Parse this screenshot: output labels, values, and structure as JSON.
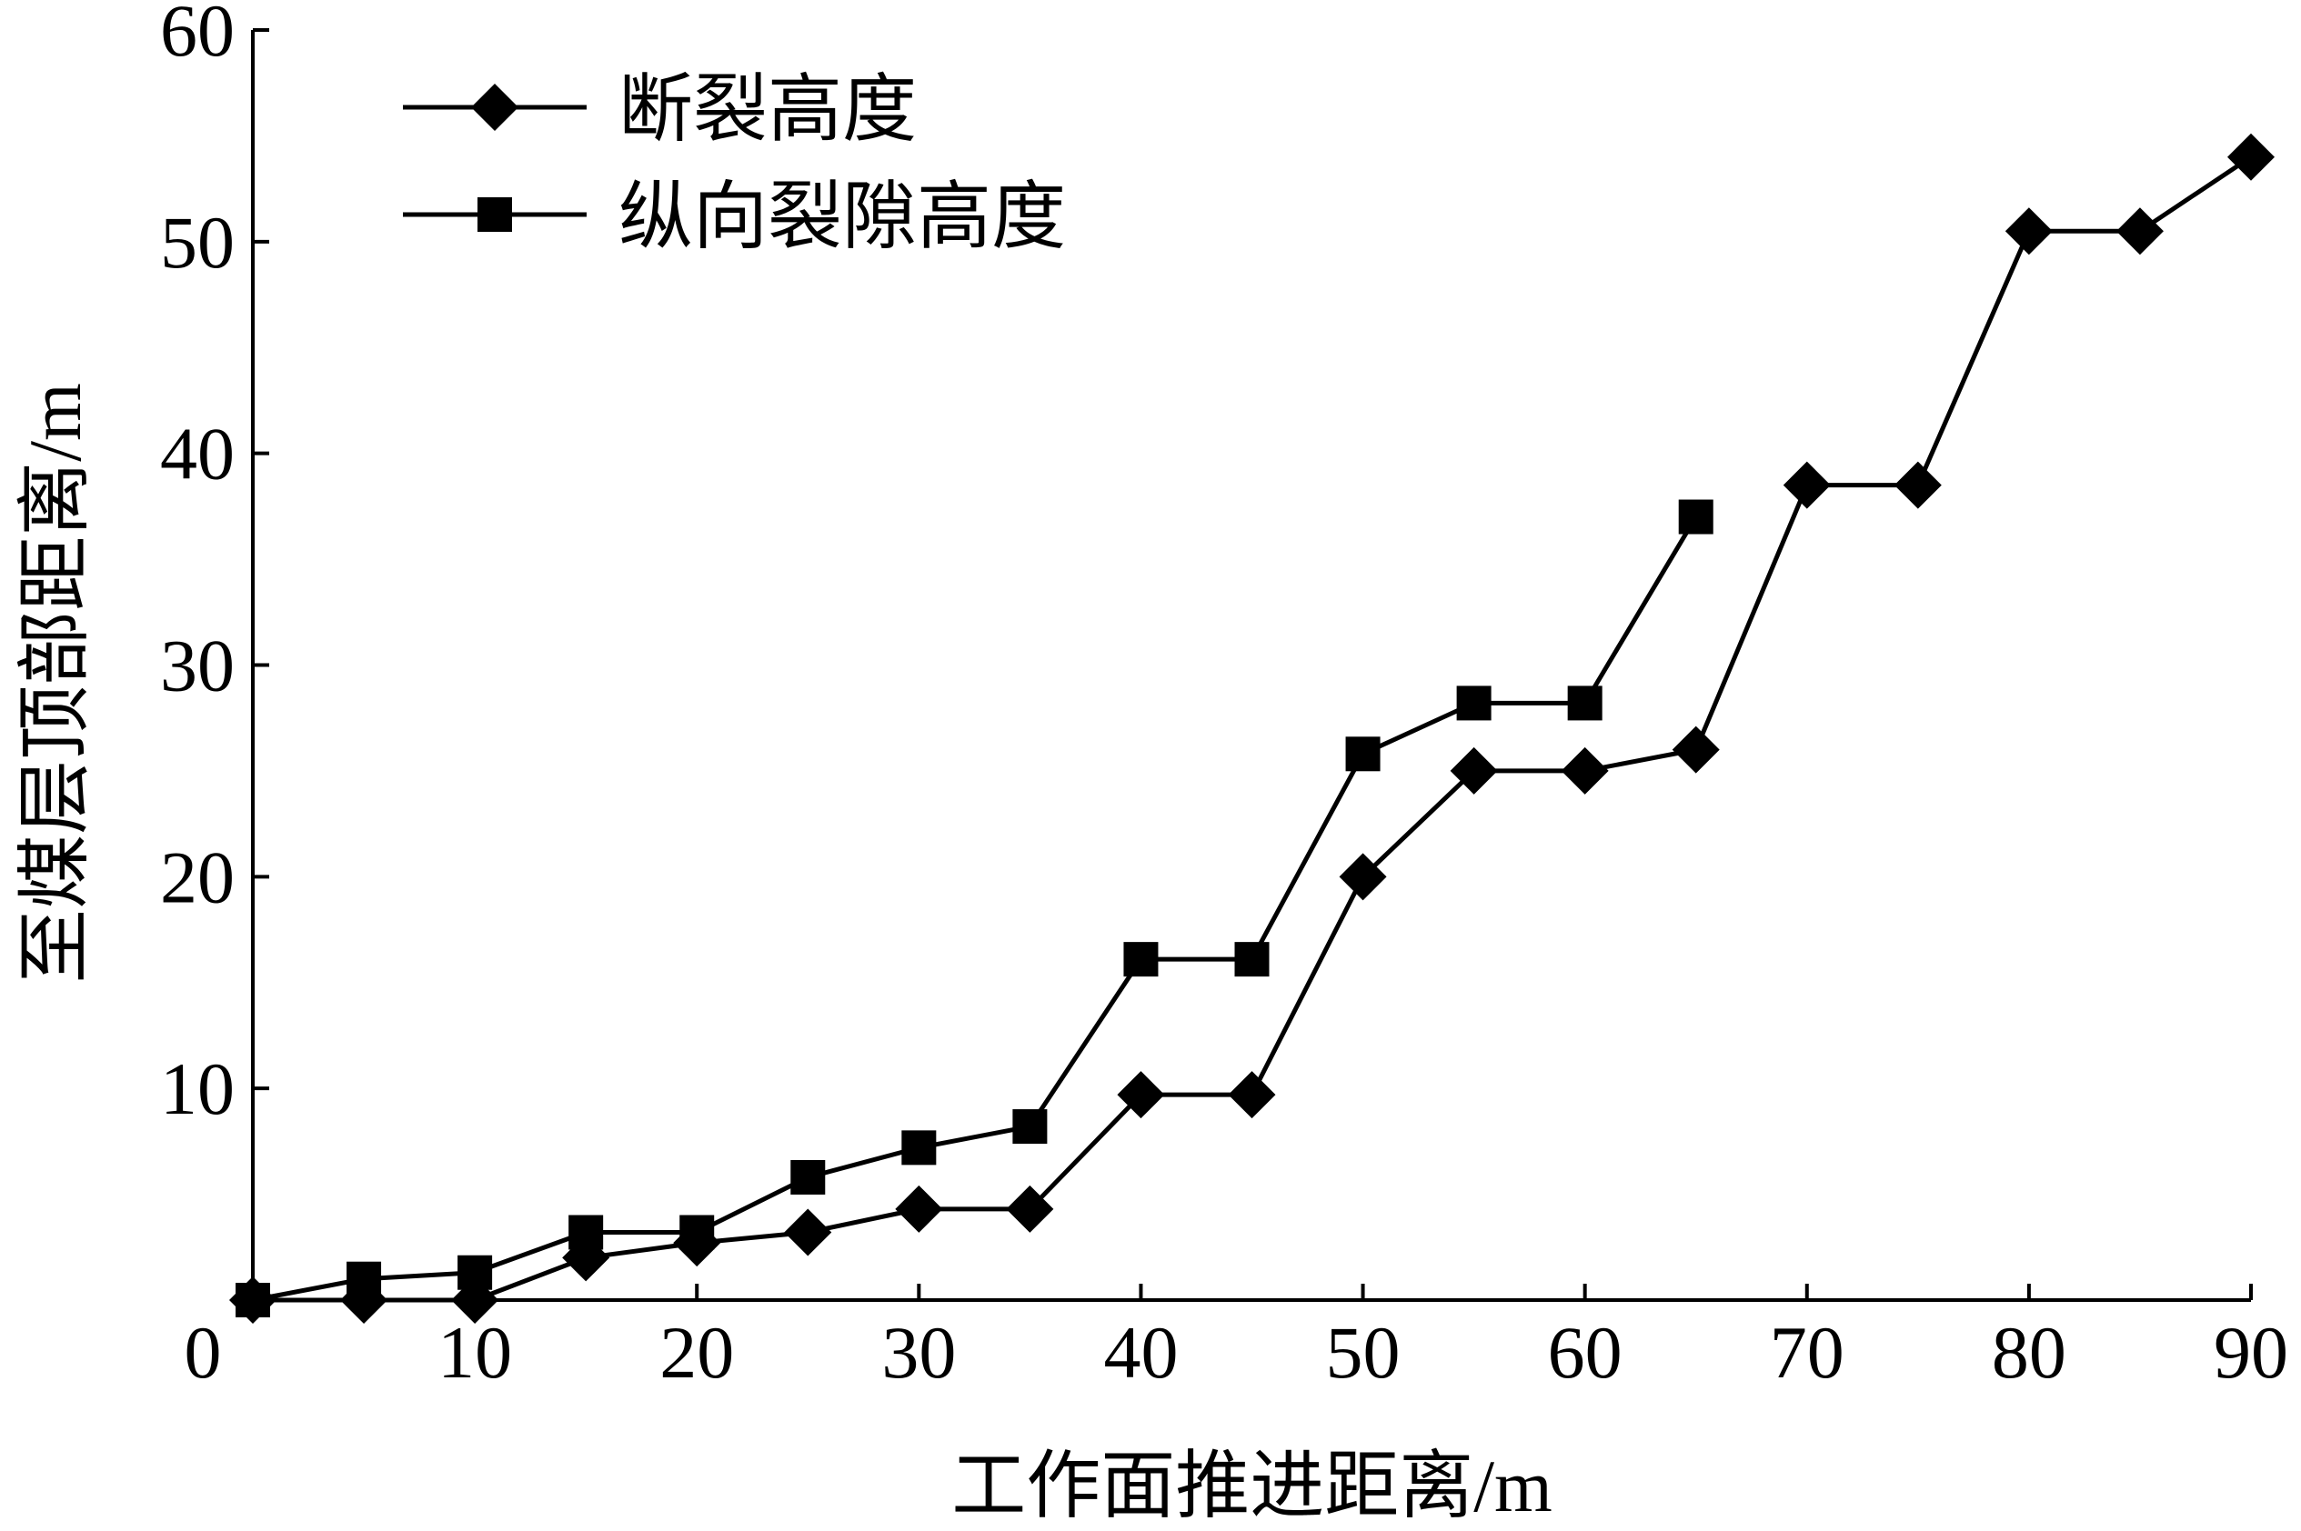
{
  "chart_data": {
    "type": "line",
    "title": "",
    "xlabel": "工作面推进距离/m",
    "ylabel": "至煤层顶部距离/m",
    "xlim": [
      0,
      90
    ],
    "ylim": [
      0,
      60
    ],
    "x_ticks": [
      "0",
      "10",
      "20",
      "30",
      "40",
      "50",
      "60",
      "70",
      "80",
      "90"
    ],
    "y_ticks": [
      "10",
      "20",
      "30",
      "40",
      "50",
      "60"
    ],
    "grid": false,
    "legend_position": "top-left",
    "series": [
      {
        "name": "断裂高度",
        "marker": "diamond",
        "color": "#000000",
        "x": [
          0,
          5,
          10,
          15,
          20,
          25,
          30,
          35,
          40,
          45,
          50,
          55,
          60,
          65,
          70,
          75,
          80,
          85,
          90
        ],
        "y": [
          0,
          0,
          0,
          2,
          2.7,
          3.2,
          4.3,
          4.3,
          9.7,
          9.7,
          20,
          25,
          25,
          26,
          38.5,
          38.5,
          50.5,
          50.5,
          54
        ]
      },
      {
        "name": "纵向裂隙高度",
        "marker": "square",
        "color": "#000000",
        "x": [
          0,
          5,
          10,
          15,
          20,
          25,
          30,
          35,
          40,
          45,
          50,
          55,
          60,
          65
        ],
        "y": [
          0,
          1,
          1.3,
          3.2,
          3.2,
          5.8,
          7.2,
          8.2,
          16.1,
          16.1,
          25.8,
          28.2,
          28.2,
          37
        ]
      }
    ]
  }
}
